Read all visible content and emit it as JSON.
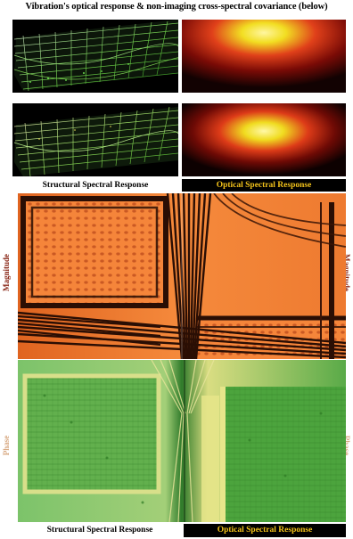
{
  "title": "Vibration's optical response & non-imaging cross-spectral covariance (below)",
  "labels": {
    "structural_top": "Structural Spectral Response",
    "optical_top": "Optical Spectral Response",
    "structural_bottom": "Structural Spectral Response",
    "optical_bottom": "Optical Spectral Response",
    "magnitude_left": "Magnitude",
    "magnitude_right": "Magnitude",
    "phase_left": "Phase",
    "phase_right": "Phase"
  },
  "colors": {
    "magnitude_orange": "#f0752a",
    "magnitude_dark": "#2a0e04",
    "phase_green": "#4fae3e",
    "phase_yellow": "#e6e58a",
    "optical_label_text": "#f2c21a",
    "side_label": "#8b2a1a"
  }
}
